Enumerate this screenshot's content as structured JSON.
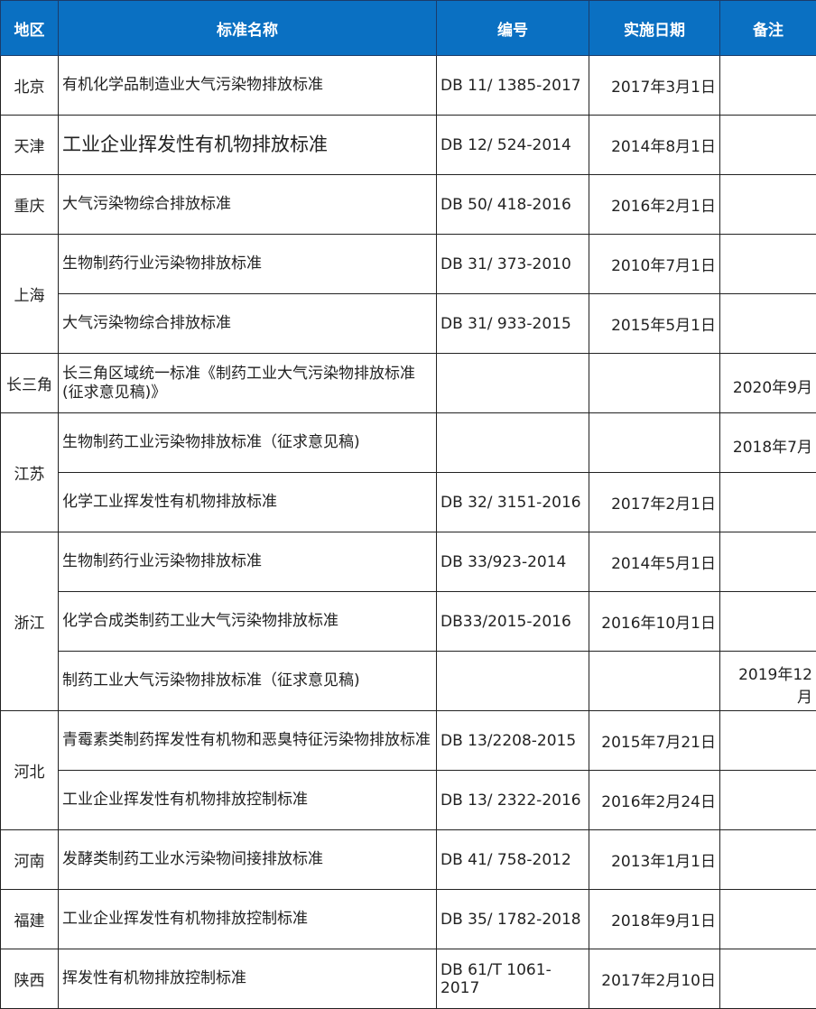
{
  "header": {
    "region": "地区",
    "name": "标准名称",
    "code": "编号",
    "date": "实施日期",
    "note": "备注"
  },
  "colors": {
    "header_bg": "#0a70c2",
    "header_text": "#ffffff",
    "border": "#222222"
  },
  "rows": [
    {
      "region": "北京",
      "span": 1,
      "name": "有机化学品制造业大气污染物排放标准",
      "code": "DB 11/ 1385-2017",
      "date": "2017年3月1日",
      "note": ""
    },
    {
      "region": "天津",
      "span": 1,
      "name": "工业企业挥发性有机物排放标准",
      "code": "DB 12/ 524-2014",
      "date": "2014年8月1日",
      "note": "",
      "big": true
    },
    {
      "region": "重庆",
      "span": 1,
      "name": "大气污染物综合排放标准",
      "code": "DB 50/ 418-2016",
      "date": "2016年2月1日",
      "note": ""
    },
    {
      "region": "上海",
      "span": 2,
      "name": "生物制药行业污染物排放标准",
      "code": "DB 31/ 373-2010",
      "date": "2010年7月1日",
      "note": ""
    },
    {
      "region": null,
      "name": "大气污染物综合排放标准",
      "code": "DB 31/ 933-2015",
      "date": "2015年5月1日",
      "note": ""
    },
    {
      "region": "长三角",
      "span": 1,
      "name": "长三角区域统一标准《制药工业大气污染物排放标准(征求意见稿)》",
      "code": "",
      "date": "",
      "note": "2020年9月"
    },
    {
      "region": "江苏",
      "span": 2,
      "name": "生物制药工业污染物排放标准（征求意见稿)",
      "code": "",
      "date": "",
      "note": "2018年7月"
    },
    {
      "region": null,
      "name": "化学工业挥发性有机物排放标准",
      "code": "DB 32/ 3151-2016",
      "date": "2017年2月1日",
      "note": ""
    },
    {
      "region": "浙江",
      "span": 3,
      "name": "生物制药行业污染物排放标准",
      "code": "DB 33/923-2014",
      "date": "2014年5月1日",
      "note": ""
    },
    {
      "region": null,
      "name": "化学合成类制药工业大气污染物排放标准",
      "code": "DB33/2015-2016",
      "date": "2016年10月1日",
      "note": ""
    },
    {
      "region": null,
      "name": "制药工业大气污染物排放标准（征求意见稿)",
      "code": "",
      "date": "",
      "note": "2019年12月"
    },
    {
      "region": "河北",
      "span": 2,
      "name": "青霉素类制药挥发性有机物和恶臭特征污染物排放标准",
      "code": "DB 13/2208-2015",
      "date": "2015年7月21日",
      "note": ""
    },
    {
      "region": null,
      "name": "工业企业挥发性有机物排放控制标准",
      "code": "DB 13/ 2322-2016",
      "date": "2016年2月24日",
      "note": ""
    },
    {
      "region": "河南",
      "span": 1,
      "name": "发酵类制药工业水污染物间接排放标准",
      "code": "DB 41/ 758-2012",
      "date": "2013年1月1日",
      "note": ""
    },
    {
      "region": "福建",
      "span": 1,
      "name": "工业企业挥发性有机物排放控制标准",
      "code": "DB 35/ 1782-2018",
      "date": "2018年9月1日",
      "note": ""
    },
    {
      "region": "陕西",
      "span": 1,
      "name": "挥发性有机物排放控制标准",
      "code": "DB 61/T 1061-2017",
      "date": "2017年2月10日",
      "note": ""
    }
  ]
}
